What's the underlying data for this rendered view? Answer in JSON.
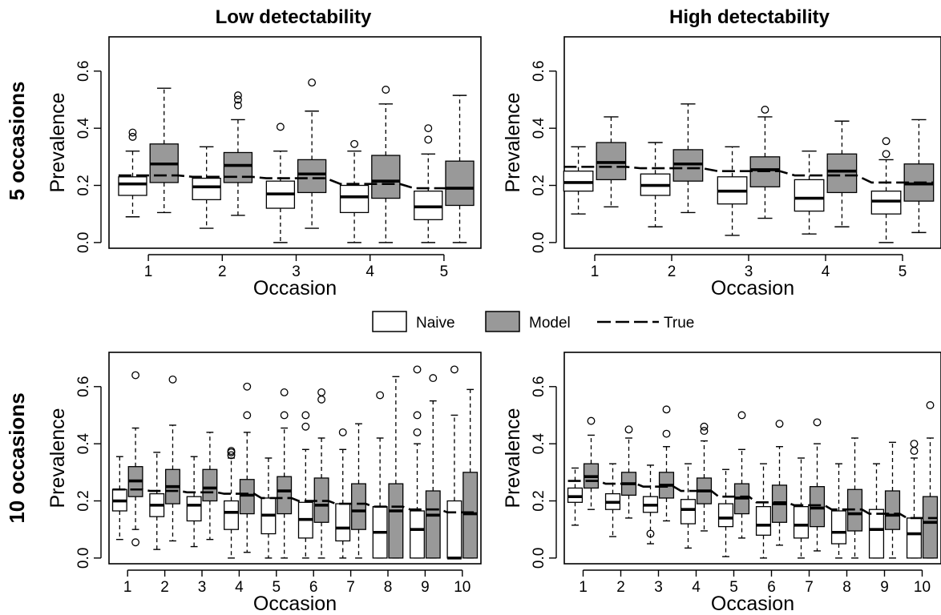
{
  "figure": {
    "column_titles": [
      "Low detectability",
      "High detectability"
    ],
    "row_titles": [
      "5 occasions",
      "10 occasions"
    ],
    "colors": {
      "naive": "#ffffff",
      "model": "#999999",
      "line": "#000000"
    }
  },
  "legend": {
    "items": [
      {
        "label": "Naive",
        "type": "box",
        "fill": "#ffffff"
      },
      {
        "label": "Model",
        "type": "box",
        "fill": "#999999"
      },
      {
        "label": "True",
        "type": "dash"
      }
    ]
  },
  "chart_data": [
    {
      "type": "box",
      "title": "Low detectability",
      "row": "5 occasions",
      "xlabel": "Occasion",
      "ylabel": "Prevalence",
      "yticks": [
        0.0,
        0.2,
        0.4,
        0.6
      ],
      "ytick_labels": [
        "0.0",
        "0.2",
        "0.4",
        "0.6"
      ],
      "ylim": [
        -0.02,
        0.72
      ],
      "categories": [
        "1",
        "2",
        "3",
        "4",
        "5"
      ],
      "series": [
        {
          "name": "Naive",
          "boxes": [
            {
              "whislo": 0.09,
              "q1": 0.165,
              "med": 0.205,
              "q3": 0.23,
              "whishi": 0.32,
              "fliers": [
                0.37,
                0.385
              ]
            },
            {
              "whislo": 0.05,
              "q1": 0.15,
              "med": 0.195,
              "q3": 0.225,
              "whishi": 0.335,
              "fliers": []
            },
            {
              "whislo": 0.0,
              "q1": 0.12,
              "med": 0.17,
              "q3": 0.215,
              "whishi": 0.32,
              "fliers": [
                0.405
              ]
            },
            {
              "whislo": 0.0,
              "q1": 0.105,
              "med": 0.16,
              "q3": 0.2,
              "whishi": 0.32,
              "fliers": [
                0.345
              ]
            },
            {
              "whislo": 0.0,
              "q1": 0.08,
              "med": 0.125,
              "q3": 0.18,
              "whishi": 0.31,
              "fliers": [
                0.36,
                0.4
              ]
            }
          ]
        },
        {
          "name": "Model",
          "boxes": [
            {
              "whislo": 0.105,
              "q1": 0.21,
              "med": 0.275,
              "q3": 0.345,
              "whishi": 0.54,
              "fliers": []
            },
            {
              "whislo": 0.095,
              "q1": 0.21,
              "med": 0.27,
              "q3": 0.315,
              "whishi": 0.43,
              "fliers": [
                0.48,
                0.5,
                0.515
              ]
            },
            {
              "whislo": 0.05,
              "q1": 0.175,
              "med": 0.24,
              "q3": 0.29,
              "whishi": 0.46,
              "fliers": [
                0.56
              ]
            },
            {
              "whislo": 0.0,
              "q1": 0.155,
              "med": 0.215,
              "q3": 0.305,
              "whishi": 0.485,
              "fliers": [
                0.535
              ]
            },
            {
              "whislo": 0.0,
              "q1": 0.13,
              "med": 0.19,
              "q3": 0.285,
              "whishi": 0.515,
              "fliers": []
            }
          ]
        },
        {
          "name": "True",
          "line": [
            0.235,
            0.23,
            0.225,
            0.205,
            0.19
          ]
        }
      ]
    },
    {
      "type": "box",
      "title": "High detectability",
      "row": "5 occasions",
      "xlabel": "Occasion",
      "ylabel": "Prevalence",
      "yticks": [
        0.0,
        0.2,
        0.4,
        0.6
      ],
      "ytick_labels": [
        "0.0",
        "0.2",
        "0.4",
        "0.6"
      ],
      "ylim": [
        -0.02,
        0.72
      ],
      "categories": [
        "1",
        "2",
        "3",
        "4",
        "5"
      ],
      "series": [
        {
          "name": "Naive",
          "boxes": [
            {
              "whislo": 0.1,
              "q1": 0.18,
              "med": 0.21,
              "q3": 0.25,
              "whishi": 0.335,
              "fliers": []
            },
            {
              "whislo": 0.055,
              "q1": 0.165,
              "med": 0.2,
              "q3": 0.24,
              "whishi": 0.35,
              "fliers": []
            },
            {
              "whislo": 0.025,
              "q1": 0.135,
              "med": 0.18,
              "q3": 0.23,
              "whishi": 0.335,
              "fliers": []
            },
            {
              "whislo": 0.03,
              "q1": 0.11,
              "med": 0.155,
              "q3": 0.22,
              "whishi": 0.32,
              "fliers": []
            },
            {
              "whislo": 0.0,
              "q1": 0.1,
              "med": 0.145,
              "q3": 0.18,
              "whishi": 0.29,
              "fliers": [
                0.31,
                0.355
              ]
            }
          ]
        },
        {
          "name": "Model",
          "boxes": [
            {
              "whislo": 0.125,
              "q1": 0.22,
              "med": 0.28,
              "q3": 0.35,
              "whishi": 0.44,
              "fliers": []
            },
            {
              "whislo": 0.105,
              "q1": 0.215,
              "med": 0.275,
              "q3": 0.325,
              "whishi": 0.485,
              "fliers": []
            },
            {
              "whislo": 0.085,
              "q1": 0.195,
              "med": 0.255,
              "q3": 0.3,
              "whishi": 0.44,
              "fliers": [
                0.465
              ]
            },
            {
              "whislo": 0.055,
              "q1": 0.175,
              "med": 0.25,
              "q3": 0.31,
              "whishi": 0.425,
              "fliers": []
            },
            {
              "whislo": 0.035,
              "q1": 0.145,
              "med": 0.205,
              "q3": 0.275,
              "whishi": 0.43,
              "fliers": []
            }
          ]
        },
        {
          "name": "True",
          "line": [
            0.265,
            0.26,
            0.25,
            0.235,
            0.21
          ]
        }
      ]
    },
    {
      "type": "box",
      "title": "Low detectability",
      "row": "10 occasions",
      "xlabel": "Occasion",
      "ylabel": "Prevalence",
      "yticks": [
        0.0,
        0.2,
        0.4,
        0.6
      ],
      "ytick_labels": [
        "0.0",
        "0.2",
        "0.4",
        "0.6"
      ],
      "ylim": [
        -0.02,
        0.72
      ],
      "categories": [
        "1",
        "2",
        "3",
        "4",
        "5",
        "6",
        "7",
        "8",
        "9",
        "10"
      ],
      "series": [
        {
          "name": "Naive",
          "boxes": [
            {
              "whislo": 0.065,
              "q1": 0.165,
              "med": 0.2,
              "q3": 0.24,
              "whishi": 0.355,
              "fliers": []
            },
            {
              "whislo": 0.03,
              "q1": 0.145,
              "med": 0.185,
              "q3": 0.225,
              "whishi": 0.37,
              "fliers": []
            },
            {
              "whislo": 0.04,
              "q1": 0.13,
              "med": 0.185,
              "q3": 0.215,
              "whishi": 0.355,
              "fliers": []
            },
            {
              "whislo": 0.0,
              "q1": 0.1,
              "med": 0.16,
              "q3": 0.2,
              "whishi": 0.35,
              "fliers": [
                0.36,
                0.37,
                0.375
              ]
            },
            {
              "whislo": 0.0,
              "q1": 0.085,
              "med": 0.15,
              "q3": 0.21,
              "whishi": 0.35,
              "fliers": []
            },
            {
              "whislo": 0.0,
              "q1": 0.07,
              "med": 0.135,
              "q3": 0.195,
              "whishi": 0.38,
              "fliers": [
                0.46,
                0.5
              ]
            },
            {
              "whislo": 0.0,
              "q1": 0.06,
              "med": 0.105,
              "q3": 0.19,
              "whishi": 0.38,
              "fliers": [
                0.44
              ]
            },
            {
              "whislo": 0.0,
              "q1": 0.0,
              "med": 0.09,
              "q3": 0.18,
              "whishi": 0.42,
              "fliers": [
                0.57
              ]
            },
            {
              "whislo": 0.0,
              "q1": 0.0,
              "med": 0.1,
              "q3": 0.165,
              "whishi": 0.4,
              "fliers": [
                0.44,
                0.5,
                0.66
              ]
            },
            {
              "whislo": 0.0,
              "q1": 0.0,
              "med": 0.0,
              "q3": 0.2,
              "whishi": 0.5,
              "fliers": [
                0.66
              ]
            }
          ]
        },
        {
          "name": "Model",
          "boxes": [
            {
              "whislo": 0.1,
              "q1": 0.215,
              "med": 0.27,
              "q3": 0.32,
              "whishi": 0.455,
              "fliers": [
                0.055,
                0.64
              ]
            },
            {
              "whislo": 0.06,
              "q1": 0.19,
              "med": 0.25,
              "q3": 0.31,
              "whishi": 0.465,
              "fliers": [
                0.625
              ]
            },
            {
              "whislo": 0.065,
              "q1": 0.2,
              "med": 0.245,
              "q3": 0.31,
              "whishi": 0.44,
              "fliers": []
            },
            {
              "whislo": 0.02,
              "q1": 0.155,
              "med": 0.22,
              "q3": 0.275,
              "whishi": 0.44,
              "fliers": [
                0.5,
                0.6
              ]
            },
            {
              "whislo": 0.0,
              "q1": 0.155,
              "med": 0.235,
              "q3": 0.285,
              "whishi": 0.455,
              "fliers": [
                0.5,
                0.58
              ]
            },
            {
              "whislo": 0.0,
              "q1": 0.125,
              "med": 0.185,
              "q3": 0.28,
              "whishi": 0.42,
              "fliers": [
                0.555,
                0.58
              ]
            },
            {
              "whislo": 0.0,
              "q1": 0.1,
              "med": 0.165,
              "q3": 0.26,
              "whishi": 0.47,
              "fliers": []
            },
            {
              "whislo": 0.0,
              "q1": 0.0,
              "med": 0.165,
              "q3": 0.26,
              "whishi": 0.635,
              "fliers": []
            },
            {
              "whislo": 0.0,
              "q1": 0.0,
              "med": 0.15,
              "q3": 0.235,
              "whishi": 0.55,
              "fliers": [
                0.63
              ]
            },
            {
              "whislo": 0.0,
              "q1": 0.0,
              "med": 0.155,
              "q3": 0.3,
              "whishi": 0.59,
              "fliers": []
            }
          ]
        },
        {
          "name": "True",
          "line": [
            0.24,
            0.235,
            0.23,
            0.225,
            0.21,
            0.2,
            0.19,
            0.18,
            0.17,
            0.16
          ]
        }
      ]
    },
    {
      "type": "box",
      "title": "High detectability",
      "row": "10 occasions",
      "xlabel": "Occasion",
      "ylabel": "Prevalence",
      "yticks": [
        0.0,
        0.2,
        0.4,
        0.6
      ],
      "ytick_labels": [
        "0.0",
        "0.2",
        "0.4",
        "0.6"
      ],
      "ylim": [
        -0.02,
        0.72
      ],
      "categories": [
        "1",
        "2",
        "3",
        "4",
        "5",
        "6",
        "7",
        "8",
        "9",
        "10"
      ],
      "series": [
        {
          "name": "Naive",
          "boxes": [
            {
              "whislo": 0.115,
              "q1": 0.195,
              "med": 0.215,
              "q3": 0.245,
              "whishi": 0.315,
              "fliers": []
            },
            {
              "whislo": 0.075,
              "q1": 0.17,
              "med": 0.195,
              "q3": 0.225,
              "whishi": 0.33,
              "fliers": []
            },
            {
              "whislo": 0.05,
              "q1": 0.16,
              "med": 0.185,
              "q3": 0.215,
              "whishi": 0.325,
              "fliers": [
                0.085
              ]
            },
            {
              "whislo": 0.035,
              "q1": 0.12,
              "med": 0.17,
              "q3": 0.205,
              "whishi": 0.33,
              "fliers": []
            },
            {
              "whislo": 0.005,
              "q1": 0.11,
              "med": 0.14,
              "q3": 0.19,
              "whishi": 0.31,
              "fliers": []
            },
            {
              "whislo": 0.0,
              "q1": 0.08,
              "med": 0.115,
              "q3": 0.18,
              "whishi": 0.33,
              "fliers": []
            },
            {
              "whislo": 0.0,
              "q1": 0.07,
              "med": 0.115,
              "q3": 0.18,
              "whishi": 0.35,
              "fliers": []
            },
            {
              "whislo": 0.0,
              "q1": 0.05,
              "med": 0.09,
              "q3": 0.165,
              "whishi": 0.33,
              "fliers": []
            },
            {
              "whislo": 0.0,
              "q1": 0.0,
              "med": 0.1,
              "q3": 0.17,
              "whishi": 0.33,
              "fliers": []
            },
            {
              "whislo": 0.0,
              "q1": 0.0,
              "med": 0.085,
              "q3": 0.14,
              "whishi": 0.35,
              "fliers": [
                0.375,
                0.4
              ]
            }
          ]
        },
        {
          "name": "Model",
          "boxes": [
            {
              "whislo": 0.17,
              "q1": 0.245,
              "med": 0.285,
              "q3": 0.33,
              "whishi": 0.43,
              "fliers": [
                0.48
              ]
            },
            {
              "whislo": 0.14,
              "q1": 0.22,
              "med": 0.26,
              "q3": 0.3,
              "whishi": 0.42,
              "fliers": [
                0.45
              ]
            },
            {
              "whislo": 0.13,
              "q1": 0.21,
              "med": 0.255,
              "q3": 0.3,
              "whishi": 0.39,
              "fliers": [
                0.435,
                0.52
              ]
            },
            {
              "whislo": 0.095,
              "q1": 0.19,
              "med": 0.235,
              "q3": 0.28,
              "whishi": 0.41,
              "fliers": [
                0.445,
                0.46
              ]
            },
            {
              "whislo": 0.07,
              "q1": 0.155,
              "med": 0.21,
              "q3": 0.26,
              "whishi": 0.38,
              "fliers": [
                0.5
              ]
            },
            {
              "whislo": 0.045,
              "q1": 0.125,
              "med": 0.19,
              "q3": 0.255,
              "whishi": 0.39,
              "fliers": [
                0.47
              ]
            },
            {
              "whislo": 0.025,
              "q1": 0.11,
              "med": 0.175,
              "q3": 0.25,
              "whishi": 0.4,
              "fliers": [
                0.475
              ]
            },
            {
              "whislo": 0.0,
              "q1": 0.095,
              "med": 0.155,
              "q3": 0.24,
              "whishi": 0.42,
              "fliers": []
            },
            {
              "whislo": 0.0,
              "q1": 0.1,
              "med": 0.15,
              "q3": 0.235,
              "whishi": 0.405,
              "fliers": []
            },
            {
              "whislo": 0.0,
              "q1": 0.0,
              "med": 0.125,
              "q3": 0.215,
              "whishi": 0.42,
              "fliers": [
                0.535
              ]
            }
          ]
        },
        {
          "name": "True",
          "line": [
            0.27,
            0.26,
            0.25,
            0.235,
            0.215,
            0.195,
            0.185,
            0.17,
            0.155,
            0.14
          ]
        }
      ]
    }
  ]
}
